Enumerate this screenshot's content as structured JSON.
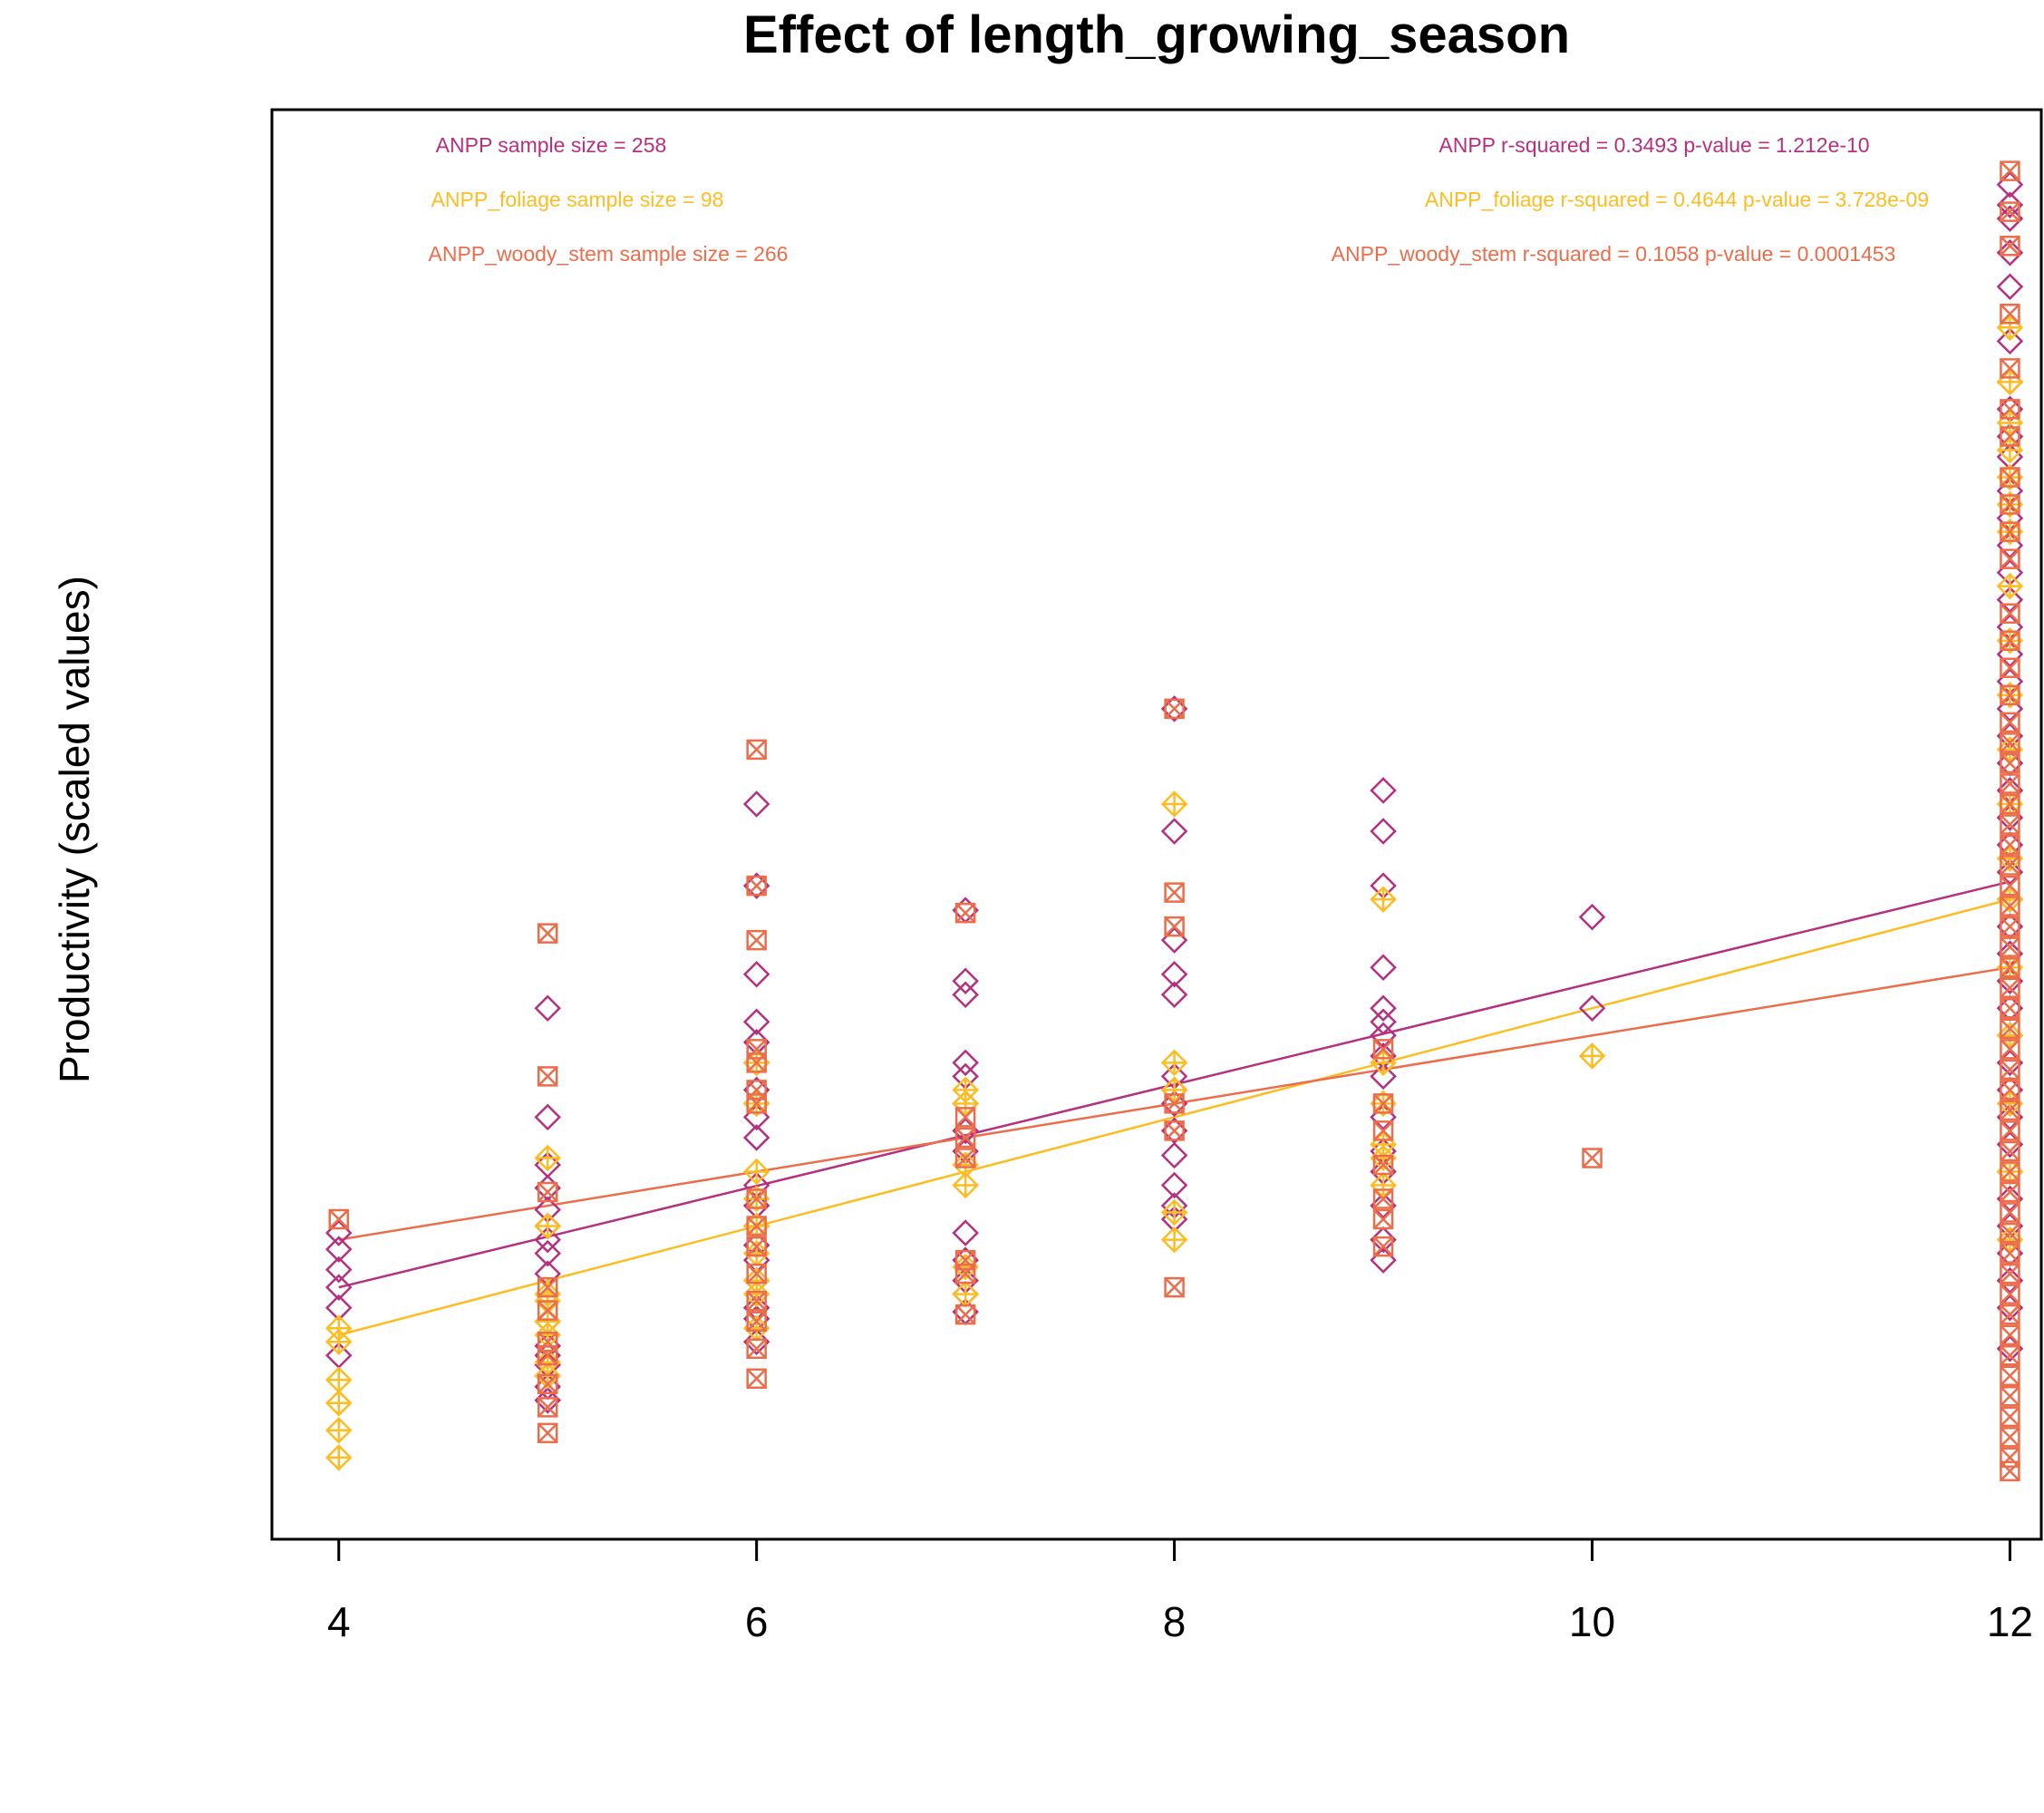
{
  "chart_data": {
    "type": "scatter",
    "title": "Effect of length_growing_season",
    "xlabel": "",
    "ylabel": "Productivity (scaled values)",
    "xlim": [
      3.68,
      12.15
    ],
    "ylim": [
      -0.02,
      1.03
    ],
    "x_ticks": [
      4,
      6,
      8,
      10,
      12
    ],
    "x_tick_labels": [
      "4",
      "6",
      "8",
      "10",
      "12"
    ],
    "y_ticks_shown": false,
    "grid": false,
    "colors": {
      "ANPP": "#B5307F",
      "ANPP_foliage": "#FCBD22",
      "ANPP_woody_stem": "#EB6E4C"
    },
    "annotations_left": [
      {
        "series": "ANPP",
        "text": "ANPP sample size = 258"
      },
      {
        "series": "ANPP_foliage",
        "text": "ANPP_foliage sample size = 98"
      },
      {
        "series": "ANPP_woody_stem",
        "text": "ANPP_woody_stem sample size = 266"
      }
    ],
    "annotations_right": [
      {
        "series": "ANPP",
        "text": "ANPP r-squared =  0.3493 p-value =  1.212e-10"
      },
      {
        "series": "ANPP_foliage",
        "text": "ANPP_foliage r-squared =  0.4644 p-value =  3.728e-09"
      },
      {
        "series": "ANPP_woody_stem",
        "text": "ANPP_woody_stem r-squared =  0.1058 p-value =  0.0001453"
      }
    ],
    "series": [
      {
        "name": "ANPP",
        "marker": "diamond",
        "color": "#B5307F",
        "fit_line": {
          "x": [
            4,
            12
          ],
          "y": [
            0.165,
            0.463
          ]
        },
        "points": [
          [
            4,
            0.115
          ],
          [
            4,
            0.15
          ],
          [
            4,
            0.165
          ],
          [
            4,
            0.178
          ],
          [
            4,
            0.193
          ],
          [
            4,
            0.205
          ],
          [
            5,
            0.082
          ],
          [
            5,
            0.092
          ],
          [
            5,
            0.1
          ],
          [
            5,
            0.108
          ],
          [
            5,
            0.115
          ],
          [
            5,
            0.122
          ],
          [
            5,
            0.14
          ],
          [
            5,
            0.175
          ],
          [
            5,
            0.19
          ],
          [
            5,
            0.2
          ],
          [
            5,
            0.21
          ],
          [
            5,
            0.222
          ],
          [
            5,
            0.238
          ],
          [
            5,
            0.255
          ],
          [
            5,
            0.29
          ],
          [
            5,
            0.37
          ],
          [
            6,
            0.125
          ],
          [
            6,
            0.142
          ],
          [
            6,
            0.15
          ],
          [
            6,
            0.17
          ],
          [
            6,
            0.185
          ],
          [
            6,
            0.196
          ],
          [
            6,
            0.21
          ],
          [
            6,
            0.225
          ],
          [
            6,
            0.24
          ],
          [
            6,
            0.275
          ],
          [
            6,
            0.29
          ],
          [
            6,
            0.3
          ],
          [
            6,
            0.31
          ],
          [
            6,
            0.33
          ],
          [
            6,
            0.345
          ],
          [
            6,
            0.36
          ],
          [
            6,
            0.395
          ],
          [
            6,
            0.46
          ],
          [
            6,
            0.52
          ],
          [
            7,
            0.147
          ],
          [
            7,
            0.16
          ],
          [
            7,
            0.17
          ],
          [
            7,
            0.185
          ],
          [
            7,
            0.205
          ],
          [
            7,
            0.265
          ],
          [
            7,
            0.28
          ],
          [
            7,
            0.3
          ],
          [
            7,
            0.32
          ],
          [
            7,
            0.33
          ],
          [
            7,
            0.38
          ],
          [
            7,
            0.39
          ],
          [
            7,
            0.442
          ],
          [
            8,
            0.215
          ],
          [
            8,
            0.225
          ],
          [
            8,
            0.24
          ],
          [
            8,
            0.262
          ],
          [
            8,
            0.28
          ],
          [
            8,
            0.3
          ],
          [
            8,
            0.31
          ],
          [
            8,
            0.32
          ],
          [
            8,
            0.38
          ],
          [
            8,
            0.395
          ],
          [
            8,
            0.42
          ],
          [
            8,
            0.5
          ],
          [
            8,
            0.59
          ],
          [
            9,
            0.185
          ],
          [
            9,
            0.2
          ],
          [
            9,
            0.225
          ],
          [
            9,
            0.25
          ],
          [
            9,
            0.265
          ],
          [
            9,
            0.29
          ],
          [
            9,
            0.32
          ],
          [
            9,
            0.335
          ],
          [
            9,
            0.35
          ],
          [
            9,
            0.36
          ],
          [
            9,
            0.37
          ],
          [
            9,
            0.4
          ],
          [
            9,
            0.46
          ],
          [
            9,
            0.5
          ],
          [
            9,
            0.53
          ],
          [
            10,
            0.37
          ],
          [
            10,
            0.437
          ],
          [
            12,
            0.12
          ],
          [
            12,
            0.15
          ],
          [
            12,
            0.17
          ],
          [
            12,
            0.19
          ],
          [
            12,
            0.21
          ],
          [
            12,
            0.23
          ],
          [
            12,
            0.25
          ],
          [
            12,
            0.27
          ],
          [
            12,
            0.29
          ],
          [
            12,
            0.31
          ],
          [
            12,
            0.33
          ],
          [
            12,
            0.35
          ],
          [
            12,
            0.37
          ],
          [
            12,
            0.39
          ],
          [
            12,
            0.41
          ],
          [
            12,
            0.43
          ],
          [
            12,
            0.45
          ],
          [
            12,
            0.47
          ],
          [
            12,
            0.49
          ],
          [
            12,
            0.51
          ],
          [
            12,
            0.53
          ],
          [
            12,
            0.55
          ],
          [
            12,
            0.57
          ],
          [
            12,
            0.59
          ],
          [
            12,
            0.61
          ],
          [
            12,
            0.63
          ],
          [
            12,
            0.65
          ],
          [
            12,
            0.67
          ],
          [
            12,
            0.69
          ],
          [
            12,
            0.71
          ],
          [
            12,
            0.73
          ],
          [
            12,
            0.75
          ],
          [
            12,
            0.775
          ],
          [
            12,
            0.79
          ],
          [
            12,
            0.81
          ],
          [
            12,
            0.83
          ],
          [
            12,
            0.86
          ],
          [
            12,
            0.9
          ],
          [
            12,
            0.925
          ],
          [
            12,
            0.95
          ],
          [
            12,
            0.96
          ],
          [
            12,
            0.975
          ]
        ]
      },
      {
        "name": "ANPP_foliage",
        "marker": "diamond-plus",
        "color": "#FCBD22",
        "fit_line": {
          "x": [
            4,
            12
          ],
          "y": [
            0.13,
            0.45
          ]
        },
        "points": [
          [
            4,
            0.04
          ],
          [
            4,
            0.06
          ],
          [
            4,
            0.08
          ],
          [
            4,
            0.097
          ],
          [
            4,
            0.125
          ],
          [
            4,
            0.135
          ],
          [
            5,
            0.1
          ],
          [
            5,
            0.11
          ],
          [
            5,
            0.13
          ],
          [
            5,
            0.14
          ],
          [
            5,
            0.155
          ],
          [
            5,
            0.16
          ],
          [
            5,
            0.21
          ],
          [
            5,
            0.26
          ],
          [
            6,
            0.135
          ],
          [
            6,
            0.16
          ],
          [
            6,
            0.17
          ],
          [
            6,
            0.19
          ],
          [
            6,
            0.21
          ],
          [
            6,
            0.23
          ],
          [
            6,
            0.25
          ],
          [
            6,
            0.3
          ],
          [
            6,
            0.33
          ],
          [
            7,
            0.16
          ],
          [
            7,
            0.18
          ],
          [
            7,
            0.24
          ],
          [
            7,
            0.255
          ],
          [
            7,
            0.3
          ],
          [
            7,
            0.31
          ],
          [
            8,
            0.2
          ],
          [
            8,
            0.22
          ],
          [
            8,
            0.31
          ],
          [
            8,
            0.33
          ],
          [
            8,
            0.52
          ],
          [
            9,
            0.24
          ],
          [
            9,
            0.26
          ],
          [
            9,
            0.27
          ],
          [
            9,
            0.3
          ],
          [
            9,
            0.33
          ],
          [
            9,
            0.45
          ],
          [
            10,
            0.335
          ],
          [
            12,
            0.2
          ],
          [
            12,
            0.25
          ],
          [
            12,
            0.3
          ],
          [
            12,
            0.35
          ],
          [
            12,
            0.4
          ],
          [
            12,
            0.45
          ],
          [
            12,
            0.48
          ],
          [
            12,
            0.52
          ],
          [
            12,
            0.56
          ],
          [
            12,
            0.6
          ],
          [
            12,
            0.64
          ],
          [
            12,
            0.68
          ],
          [
            12,
            0.72
          ],
          [
            12,
            0.74
          ],
          [
            12,
            0.76
          ],
          [
            12,
            0.78
          ],
          [
            12,
            0.8
          ],
          [
            12,
            0.83
          ],
          [
            12,
            0.87
          ]
        ]
      },
      {
        "name": "ANPP_woody_stem",
        "marker": "square-x",
        "color": "#EB6E4C",
        "fit_line": {
          "x": [
            4,
            12
          ],
          "y": [
            0.2,
            0.4
          ]
        },
        "points": [
          [
            4,
            0.215
          ],
          [
            5,
            0.058
          ],
          [
            5,
            0.077
          ],
          [
            5,
            0.094
          ],
          [
            5,
            0.115
          ],
          [
            5,
            0.125
          ],
          [
            5,
            0.148
          ],
          [
            5,
            0.165
          ],
          [
            5,
            0.235
          ],
          [
            5,
            0.32
          ],
          [
            5,
            0.425
          ],
          [
            6,
            0.098
          ],
          [
            6,
            0.12
          ],
          [
            6,
            0.14
          ],
          [
            6,
            0.155
          ],
          [
            6,
            0.175
          ],
          [
            6,
            0.195
          ],
          [
            6,
            0.21
          ],
          [
            6,
            0.23
          ],
          [
            6,
            0.3
          ],
          [
            6,
            0.31
          ],
          [
            6,
            0.33
          ],
          [
            6,
            0.34
          ],
          [
            6,
            0.42
          ],
          [
            6,
            0.46
          ],
          [
            6,
            0.56
          ],
          [
            7,
            0.145
          ],
          [
            7,
            0.175
          ],
          [
            7,
            0.185
          ],
          [
            7,
            0.26
          ],
          [
            7,
            0.275
          ],
          [
            7,
            0.29
          ],
          [
            7,
            0.44
          ],
          [
            8,
            0.165
          ],
          [
            8,
            0.28
          ],
          [
            8,
            0.3
          ],
          [
            8,
            0.43
          ],
          [
            8,
            0.455
          ],
          [
            8,
            0.59
          ],
          [
            9,
            0.195
          ],
          [
            9,
            0.215
          ],
          [
            9,
            0.23
          ],
          [
            9,
            0.255
          ],
          [
            9,
            0.28
          ],
          [
            9,
            0.3
          ],
          [
            9,
            0.34
          ],
          [
            10,
            0.26
          ],
          [
            12,
            0.03
          ],
          [
            12,
            0.04
          ],
          [
            12,
            0.055
          ],
          [
            12,
            0.07
          ],
          [
            12,
            0.085
          ],
          [
            12,
            0.1
          ],
          [
            12,
            0.115
          ],
          [
            12,
            0.13
          ],
          [
            12,
            0.145
          ],
          [
            12,
            0.16
          ],
          [
            12,
            0.175
          ],
          [
            12,
            0.19
          ],
          [
            12,
            0.205
          ],
          [
            12,
            0.22
          ],
          [
            12,
            0.235
          ],
          [
            12,
            0.25
          ],
          [
            12,
            0.265
          ],
          [
            12,
            0.28
          ],
          [
            12,
            0.295
          ],
          [
            12,
            0.31
          ],
          [
            12,
            0.325
          ],
          [
            12,
            0.34
          ],
          [
            12,
            0.355
          ],
          [
            12,
            0.37
          ],
          [
            12,
            0.385
          ],
          [
            12,
            0.4
          ],
          [
            12,
            0.415
          ],
          [
            12,
            0.43
          ],
          [
            12,
            0.445
          ],
          [
            12,
            0.46
          ],
          [
            12,
            0.475
          ],
          [
            12,
            0.49
          ],
          [
            12,
            0.505
          ],
          [
            12,
            0.52
          ],
          [
            12,
            0.535
          ],
          [
            12,
            0.55
          ],
          [
            12,
            0.565
          ],
          [
            12,
            0.58
          ],
          [
            12,
            0.6
          ],
          [
            12,
            0.62
          ],
          [
            12,
            0.64
          ],
          [
            12,
            0.66
          ],
          [
            12,
            0.7
          ],
          [
            12,
            0.72
          ],
          [
            12,
            0.74
          ],
          [
            12,
            0.76
          ],
          [
            12,
            0.79
          ],
          [
            12,
            0.81
          ],
          [
            12,
            0.84
          ],
          [
            12,
            0.88
          ],
          [
            12,
            0.93
          ],
          [
            12,
            0.955
          ],
          [
            12,
            0.985
          ]
        ]
      }
    ]
  }
}
